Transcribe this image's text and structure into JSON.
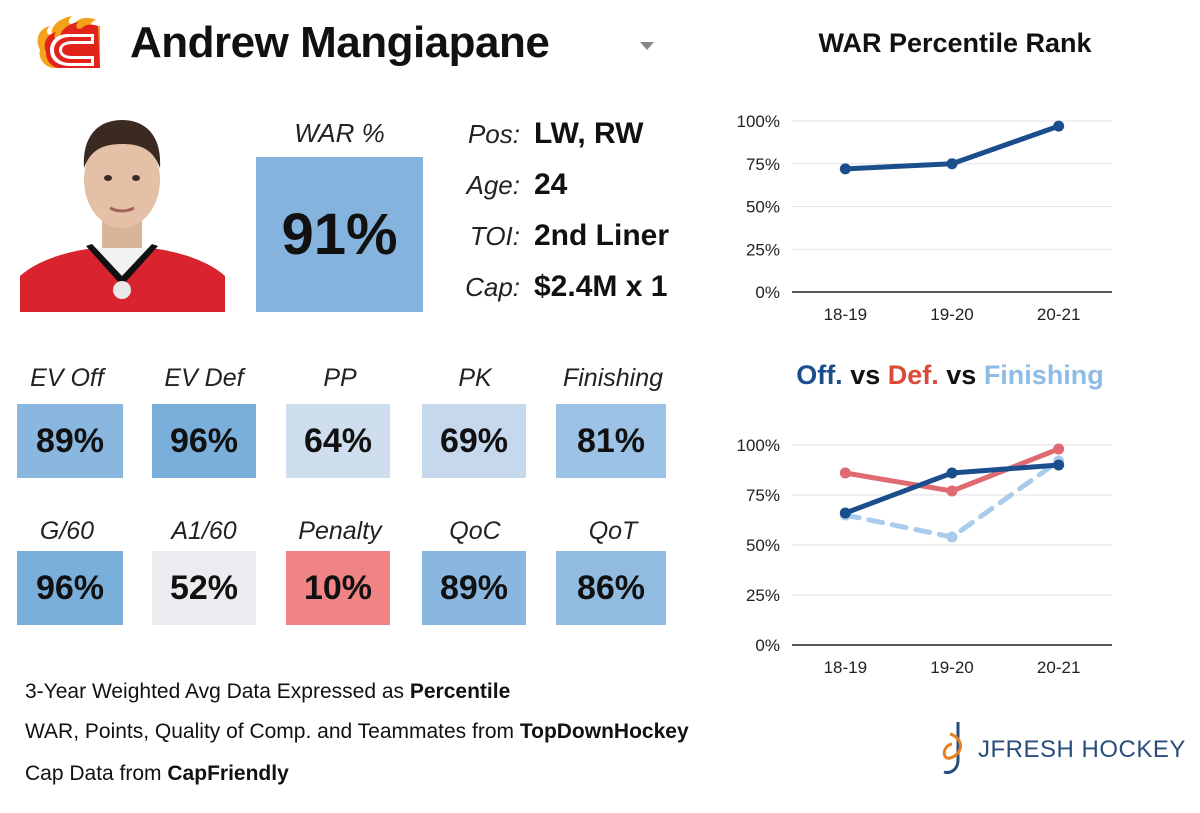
{
  "header": {
    "player_name": "Andrew Mangiapane",
    "team_logo_icon": "flames-c-logo-icon"
  },
  "war": {
    "label": "WAR %",
    "value": "91%",
    "color": "#84b3de"
  },
  "info": [
    {
      "key": "Pos:",
      "value": "LW, RW"
    },
    {
      "key": "Age:",
      "value": "24"
    },
    {
      "key": "TOI:",
      "value": "2nd Liner"
    },
    {
      "key": "Cap:",
      "value": "$2.4M x 1"
    }
  ],
  "stats_row1": [
    {
      "label": "EV Off",
      "value": "89%",
      "color": "#8ab7e0"
    },
    {
      "label": "EV Def",
      "value": "96%",
      "color": "#7aaedb"
    },
    {
      "label": "PP",
      "value": "64%",
      "color": "#cfdeee"
    },
    {
      "label": "PK",
      "value": "69%",
      "color": "#c6d9ec"
    },
    {
      "label": "Finishing",
      "value": "81%",
      "color": "#9cc2e6"
    }
  ],
  "stats_row2": [
    {
      "label": "G/60",
      "value": "96%",
      "color": "#7aaedb"
    },
    {
      "label": "A1/60",
      "value": "52%",
      "color": "#ececf0"
    },
    {
      "label": "Penalty",
      "value": "10%",
      "color": "#f08383"
    },
    {
      "label": "QoC",
      "value": "89%",
      "color": "#8ab7e0"
    },
    {
      "label": "QoT",
      "value": "86%",
      "color": "#92bbe2"
    }
  ],
  "footnotes": [
    {
      "text": "3-Year Weighted Avg Data Expressed as ",
      "bold": "Percentile"
    },
    {
      "text": "WAR, Points, Quality of Comp. and Teammates from ",
      "bold": "TopDownHockey"
    },
    {
      "text": "Cap Data from ",
      "bold": "CapFriendly"
    }
  ],
  "brand": {
    "name": "JFRESH HOCKEY",
    "icon": "jfresh-hockey-logo-icon"
  },
  "chart_data": [
    {
      "type": "line",
      "title": "WAR Percentile Rank",
      "categories": [
        "18-19",
        "19-20",
        "20-21"
      ],
      "series": [
        {
          "values": [
            72,
            75,
            97
          ],
          "color": "#1a4e8c",
          "dashed": false
        }
      ],
      "yticks": [
        "0%",
        "25%",
        "50%",
        "75%",
        "100%"
      ],
      "ylim": [
        0,
        100
      ],
      "grid": true
    },
    {
      "type": "line",
      "title_parts": [
        {
          "text": "Off.",
          "color": "#1a4e8c"
        },
        {
          "text": " vs ",
          "color": "#111111"
        },
        {
          "text": "Def.",
          "color": "#d94a38"
        },
        {
          "text": " vs ",
          "color": "#111111"
        },
        {
          "text": "Finishing",
          "color": "#8fbce6"
        }
      ],
      "categories": [
        "18-19",
        "19-20",
        "20-21"
      ],
      "series": [
        {
          "values": [
            65,
            54,
            92
          ],
          "color": "#a9cbec",
          "dashed": true
        },
        {
          "values": [
            86,
            77,
            98
          ],
          "color": "#e06a72",
          "dashed": false
        },
        {
          "values": [
            66,
            86,
            90
          ],
          "color": "#1a4e8c",
          "dashed": false
        }
      ],
      "yticks": [
        "0%",
        "25%",
        "50%",
        "75%",
        "100%"
      ],
      "ylim": [
        0,
        100
      ],
      "grid": true
    }
  ]
}
